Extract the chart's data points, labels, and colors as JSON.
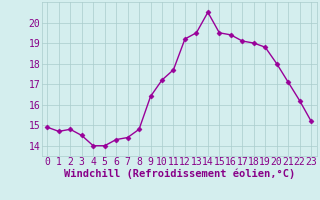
{
  "x": [
    0,
    1,
    2,
    3,
    4,
    5,
    6,
    7,
    8,
    9,
    10,
    11,
    12,
    13,
    14,
    15,
    16,
    17,
    18,
    19,
    20,
    21,
    22,
    23
  ],
  "y": [
    14.9,
    14.7,
    14.8,
    14.5,
    14.0,
    14.0,
    14.3,
    14.4,
    14.8,
    16.4,
    17.2,
    17.7,
    19.2,
    19.5,
    20.5,
    19.5,
    19.4,
    19.1,
    19.0,
    18.8,
    18.0,
    17.1,
    16.2,
    15.2
  ],
  "line_color": "#990099",
  "marker": "D",
  "marker_size": 2.5,
  "linewidth": 1.0,
  "bg_color": "#d4eeee",
  "grid_color": "#aacccc",
  "xlabel": "Windchill (Refroidissement éolien,°C)",
  "xlabel_color": "#880088",
  "xlabel_fontsize": 7.5,
  "ylim": [
    13.5,
    21.0
  ],
  "xlim": [
    -0.5,
    23.5
  ],
  "yticks": [
    14,
    15,
    16,
    17,
    18,
    19,
    20
  ],
  "xticks": [
    0,
    1,
    2,
    3,
    4,
    5,
    6,
    7,
    8,
    9,
    10,
    11,
    12,
    13,
    14,
    15,
    16,
    17,
    18,
    19,
    20,
    21,
    22,
    23
  ],
  "tick_fontsize": 7,
  "tick_color": "#880088"
}
